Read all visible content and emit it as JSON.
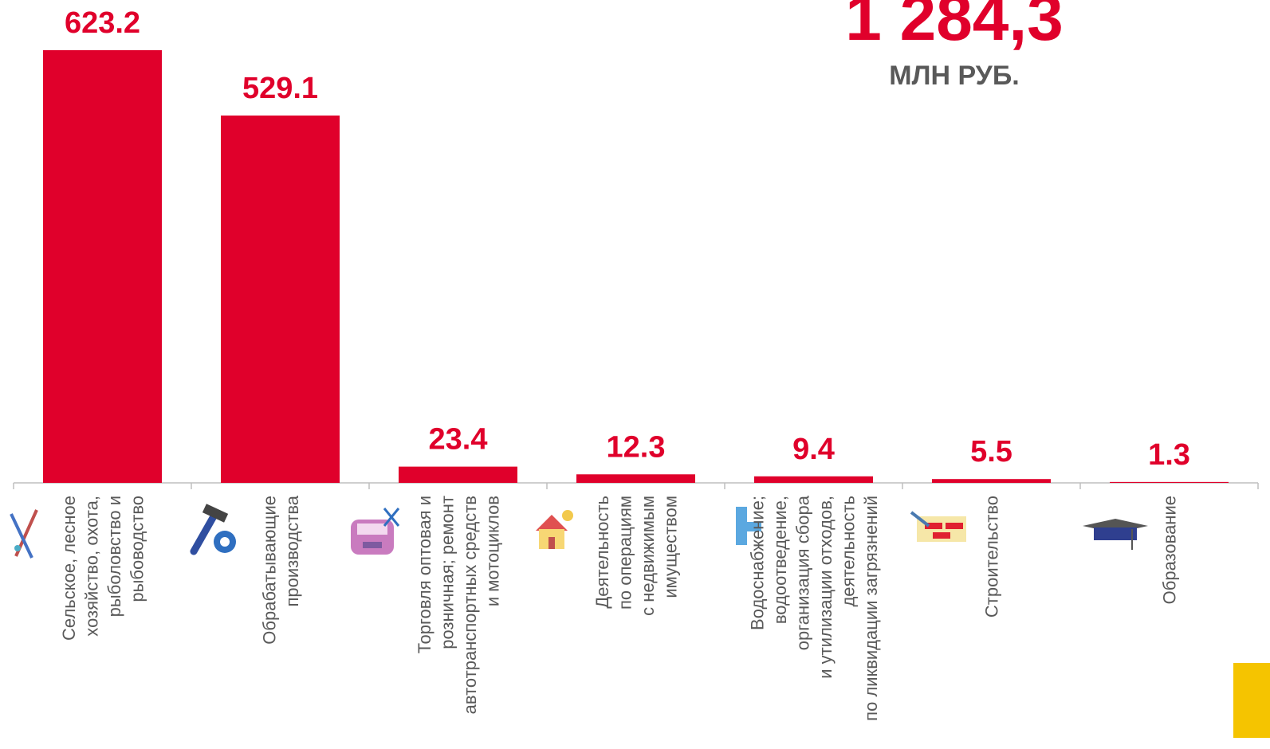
{
  "chart_data": {
    "type": "bar",
    "total": "1 284,3",
    "total_unit": "МЛН РУБ.",
    "categories": [
      "Сельское, лесное\nхозяйство, охота,\nрыболовство и\nрыбоводство",
      "Обрабатывающие\nпроизводства",
      "Торговля оптовая и\nрозничная; ремонт\nавтотранспортных средств\nи мотоциклов",
      "Деятельность\nпо операциям\nс недвижимым\nимуществом",
      "Водоснабжение;\nводоотведение,\nорганизация сбора\nи утилизации отходов,\nдеятельность\nпо ликвидации загрязнений",
      "Строительство",
      "Образование"
    ],
    "values": [
      623.2,
      529.1,
      23.4,
      12.3,
      9.4,
      5.5,
      1.3
    ],
    "color": "#e0002b"
  }
}
